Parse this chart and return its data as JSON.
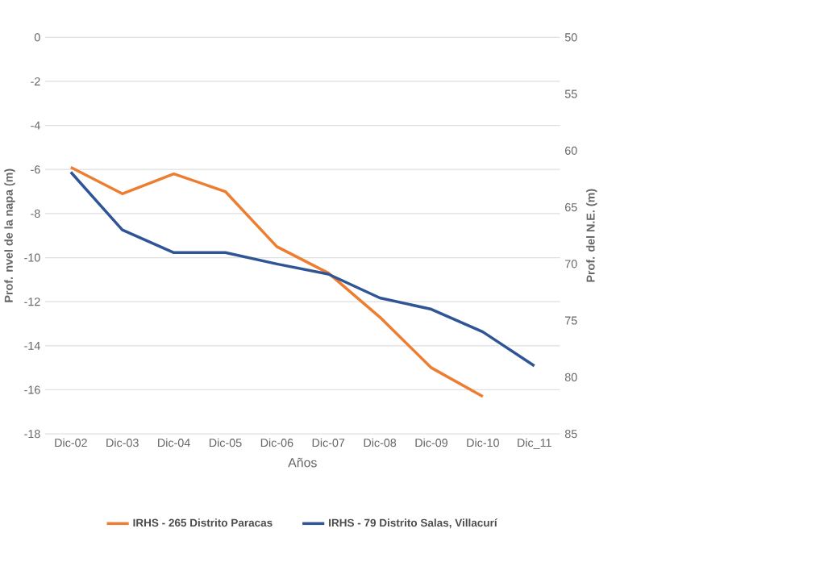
{
  "chart_data": {
    "type": "line",
    "xlabel": "Años",
    "ylabel": "Prof. nvel de la napa (m)",
    "y2label": "Prof. del N.E. (m)",
    "categories": [
      "Dic-02",
      "Dic-03",
      "Dic-04",
      "Dic-05",
      "Dic-06",
      "Dic-07",
      "Dic-08",
      "Dic-09",
      "Dic-10",
      "Dic_11"
    ],
    "series": [
      {
        "name": "IRHS - 265 Distrito Paracas",
        "color": "#ed7d31",
        "values": [
          -5.9,
          -7.1,
          -6.2,
          -7.0,
          -9.5,
          -10.7,
          -12.7,
          -15.0,
          -16.3,
          null
        ]
      },
      {
        "name": "IRHS - 79 Distrito Salas, Villacurí",
        "color": "#2f5597",
        "axis": "y2",
        "values": [
          61.9,
          67.0,
          69.0,
          69.0,
          70.0,
          70.9,
          73.0,
          74.0,
          76.0,
          79.0
        ]
      }
    ],
    "ylim": [
      -18,
      0
    ],
    "yticks": [
      -18,
      -16,
      -14,
      -12,
      -10,
      -8,
      -6,
      -4,
      -2,
      0
    ],
    "y2lim": [
      85,
      50
    ],
    "y2ticks": [
      50,
      55,
      60,
      65,
      70,
      75,
      80,
      85
    ],
    "grid": "y",
    "legend": "bottom",
    "marker": "none",
    "line_style": "solid"
  }
}
